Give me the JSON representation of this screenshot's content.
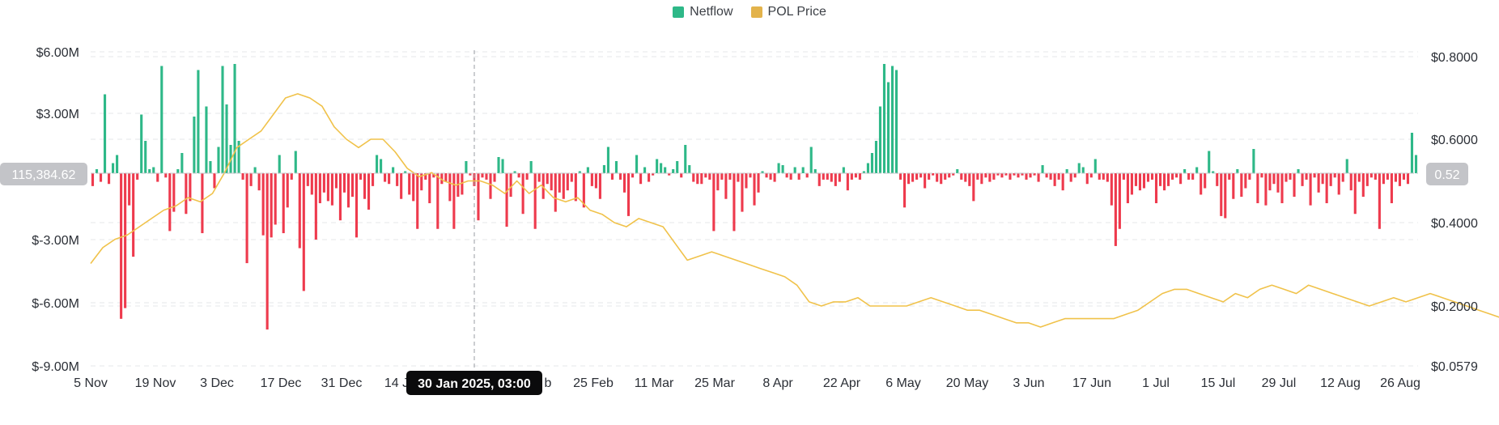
{
  "legend": [
    {
      "label": "Netflow",
      "color": "#2eb888"
    },
    {
      "label": "POL Price",
      "color": "#e3b34b"
    }
  ],
  "colors": {
    "positive": "#2eb888",
    "negative": "#ee3a4d",
    "price": "#f0c24a"
  },
  "chart_data": {
    "type": "bar+line",
    "x_tick_labels": [
      "5 Nov",
      "19 Nov",
      "3 Dec",
      "17 Dec",
      "31 Dec",
      "14 J",
      "30 Jan 2025, 03:00",
      "b",
      "25 Feb",
      "11 Mar",
      "25 Mar",
      "8 Apr",
      "22 Apr",
      "6 May",
      "20 May",
      "3 Jun",
      "17 Jun",
      "1 Jul",
      "15 Jul",
      "29 Jul",
      "12 Aug",
      "26 Aug"
    ],
    "y_left_ticks": [
      "$6.00M",
      "$3.00M",
      "$-3.00M",
      "$-6.00M",
      "$-9.00M"
    ],
    "y_left_tick_values": [
      6,
      3,
      -3,
      -6,
      -9
    ],
    "y_left_range": [
      -9,
      6
    ],
    "y_right_ticks": [
      "$0.8000",
      "$0.6000",
      "$0.4000",
      "$0.2000",
      "$0.0579"
    ],
    "y_right_tick_values": [
      0.8,
      0.6,
      0.4,
      0.2,
      0.0579
    ],
    "y_right_range": [
      0.0579,
      0.8
    ],
    "crosshair": {
      "date_label": "30 Jan 2025, 03:00",
      "left_value_label": "115,384.62",
      "left_value": 0.115,
      "right_value_label": "0.52",
      "right_value": 0.52
    },
    "series": [
      {
        "name": "Netflow",
        "axis": "left",
        "unit": "$M",
        "values": [
          -0.6,
          0.2,
          -0.4,
          3.9,
          -0.5,
          0.5,
          0.9,
          -6.8,
          -6.3,
          -1.5,
          -3.9,
          -0.3,
          2.9,
          1.6,
          0.2,
          0.3,
          -0.4,
          5.3,
          -0.2,
          -2.7,
          -1.8,
          0.2,
          1.0,
          -1.9,
          -1.3,
          2.8,
          5.1,
          -2.8,
          3.3,
          0.6,
          -0.7,
          1.3,
          5.3,
          3.4,
          1.4,
          5.4,
          1.6,
          -0.3,
          -4.2,
          -0.6,
          0.3,
          -0.8,
          -2.9,
          -7.3,
          -3.0,
          -2.4,
          0.9,
          -2.8,
          -1.6,
          -0.3,
          1.1,
          -3.5,
          -5.5,
          -0.6,
          -1.0,
          -3.1,
          -1.4,
          -0.9,
          -1.3,
          -1.5,
          -0.7,
          -2.2,
          -0.9,
          -1.6,
          -1.1,
          -3.0,
          -0.3,
          -1.2,
          -1.7,
          -0.6,
          0.9,
          0.7,
          -0.4,
          -0.5,
          0.3,
          -0.6,
          -1.2,
          0.1,
          -1.0,
          -1.3,
          -2.6,
          -0.8,
          -0.3,
          -1.4,
          -0.2,
          -2.6,
          -0.5,
          -0.4,
          -1.3,
          -2.6,
          -1.1,
          -1.0,
          0.6,
          -0.1,
          -0.6,
          -2.2,
          -0.2,
          -0.3,
          -1.2,
          -0.4,
          0.8,
          0.7,
          -2.5,
          -1.1,
          0.1,
          -0.2,
          -1.9,
          -0.3,
          0.6,
          -2.6,
          -0.4,
          -1.2,
          -0.5,
          -0.8,
          -1.8,
          -0.9,
          -1.2,
          -0.8,
          -0.4,
          -1.3,
          0.1,
          -1.6,
          0.3,
          -0.6,
          -0.7,
          -1.2,
          0.4,
          1.3,
          -0.3,
          0.6,
          -0.3,
          -0.9,
          -2.0,
          -0.2,
          0.9,
          -0.5,
          0.3,
          -0.4,
          -0.1,
          0.7,
          0.5,
          0.3,
          -0.1,
          0.2,
          0.6,
          -0.2,
          1.4,
          0.4,
          -0.4,
          -0.5,
          -0.5,
          -0.2,
          -0.3,
          -2.7,
          -0.8,
          -0.3,
          -1.2,
          -0.3,
          -2.7,
          -0.4,
          -1.8,
          -0.7,
          -0.2,
          -1.5,
          -0.9,
          0.1,
          -0.2,
          -0.3,
          -0.4,
          0.5,
          0.4,
          -0.2,
          -0.3,
          0.3,
          -0.3,
          0.3,
          -0.2,
          1.3,
          0.2,
          -0.6,
          -0.3,
          -0.3,
          -0.4,
          -0.6,
          -0.4,
          0.3,
          -0.8,
          -0.3,
          -0.2,
          -0.3,
          0.1,
          0.5,
          1.0,
          1.6,
          3.3,
          5.4,
          4.5,
          5.3,
          5.1,
          -0.3,
          -1.6,
          -0.5,
          -0.4,
          -0.3,
          -0.2,
          -0.7,
          -0.3,
          -0.1,
          -0.4,
          -0.5,
          -0.3,
          -0.2,
          -0.1,
          0.2,
          -0.3,
          -0.4,
          -0.6,
          -1.3,
          -0.3,
          -0.5,
          -0.2,
          -0.4,
          -0.3,
          -0.1,
          -0.2,
          -0.1,
          -0.3,
          -0.1,
          -0.2,
          -0.1,
          -0.3,
          -0.2,
          -0.1,
          -0.4,
          0.4,
          -0.2,
          -0.3,
          -0.6,
          -0.3,
          -0.8,
          0.2,
          -0.4,
          -0.2,
          0.5,
          0.3,
          -0.5,
          -0.2,
          0.7,
          -0.3,
          -0.3,
          -0.4,
          -1.5,
          -3.4,
          -2.6,
          -0.3,
          -1.4,
          -1.0,
          -0.6,
          -0.8,
          -0.7,
          -0.4,
          -0.3,
          -1.4,
          -0.6,
          -0.8,
          -0.6,
          -0.3,
          -0.2,
          -0.5,
          0.2,
          -0.3,
          -0.3,
          0.3,
          -1.0,
          -0.7,
          1.1,
          0.1,
          -0.6,
          -2.0,
          -2.1,
          -0.3,
          -1.2,
          0.2,
          -1.1,
          -0.7,
          -0.3,
          1.2,
          -1.4,
          -0.2,
          -1.5,
          -0.8,
          -0.5,
          -0.9,
          -1.4,
          -0.4,
          -0.3,
          -1.1,
          0.2,
          -0.6,
          -0.3,
          -1.5,
          -0.2,
          -0.9,
          -0.5,
          -1.4,
          -0.6,
          -0.2,
          -1.0,
          -0.4,
          0.7,
          -0.8,
          -1.9,
          -0.4,
          -1.1,
          -0.6,
          -0.2,
          -0.3,
          -2.6,
          -0.5,
          -0.3,
          -1.4,
          -0.4,
          -0.6,
          -0.3,
          -0.5,
          2.0,
          0.9
        ]
      },
      {
        "name": "POL Price",
        "axis": "right",
        "unit": "$",
        "points": [
          [
            0,
            0.302
          ],
          [
            3,
            0.34
          ],
          [
            6,
            0.36
          ],
          [
            9,
            0.37
          ],
          [
            12,
            0.39
          ],
          [
            15,
            0.41
          ],
          [
            18,
            0.43
          ],
          [
            21,
            0.44
          ],
          [
            24,
            0.46
          ],
          [
            27,
            0.45
          ],
          [
            30,
            0.47
          ],
          [
            33,
            0.52
          ],
          [
            36,
            0.58
          ],
          [
            39,
            0.6
          ],
          [
            42,
            0.62
          ],
          [
            45,
            0.66
          ],
          [
            48,
            0.7
          ],
          [
            51,
            0.71
          ],
          [
            54,
            0.7
          ],
          [
            57,
            0.68
          ],
          [
            60,
            0.63
          ],
          [
            63,
            0.6
          ],
          [
            66,
            0.58
          ],
          [
            69,
            0.6
          ],
          [
            72,
            0.6
          ],
          [
            75,
            0.57
          ],
          [
            78,
            0.53
          ],
          [
            81,
            0.51
          ],
          [
            84,
            0.52
          ],
          [
            87,
            0.5
          ],
          [
            90,
            0.49
          ],
          [
            93,
            0.5
          ],
          [
            96,
            0.5
          ],
          [
            99,
            0.49
          ],
          [
            102,
            0.47
          ],
          [
            105,
            0.5
          ],
          [
            108,
            0.47
          ],
          [
            111,
            0.49
          ],
          [
            114,
            0.46
          ],
          [
            117,
            0.45
          ],
          [
            120,
            0.46
          ],
          [
            123,
            0.43
          ],
          [
            126,
            0.42
          ],
          [
            129,
            0.4
          ],
          [
            132,
            0.39
          ],
          [
            135,
            0.41
          ],
          [
            138,
            0.4
          ],
          [
            141,
            0.39
          ],
          [
            144,
            0.35
          ],
          [
            147,
            0.31
          ],
          [
            150,
            0.32
          ],
          [
            153,
            0.33
          ],
          [
            156,
            0.32
          ],
          [
            159,
            0.31
          ],
          [
            162,
            0.3
          ],
          [
            165,
            0.29
          ],
          [
            168,
            0.28
          ],
          [
            171,
            0.27
          ],
          [
            174,
            0.25
          ],
          [
            177,
            0.21
          ],
          [
            180,
            0.2
          ],
          [
            183,
            0.21
          ],
          [
            186,
            0.21
          ],
          [
            189,
            0.22
          ],
          [
            192,
            0.2
          ],
          [
            195,
            0.2
          ],
          [
            198,
            0.2
          ],
          [
            201,
            0.2
          ],
          [
            204,
            0.21
          ],
          [
            207,
            0.22
          ],
          [
            210,
            0.21
          ],
          [
            213,
            0.2
          ],
          [
            216,
            0.19
          ],
          [
            219,
            0.19
          ],
          [
            222,
            0.18
          ],
          [
            225,
            0.17
          ],
          [
            228,
            0.16
          ],
          [
            231,
            0.16
          ],
          [
            234,
            0.15
          ],
          [
            237,
            0.16
          ],
          [
            240,
            0.17
          ],
          [
            243,
            0.17
          ],
          [
            246,
            0.17
          ],
          [
            249,
            0.17
          ],
          [
            252,
            0.17
          ],
          [
            255,
            0.18
          ],
          [
            258,
            0.19
          ],
          [
            261,
            0.21
          ],
          [
            264,
            0.23
          ],
          [
            267,
            0.24
          ],
          [
            270,
            0.24
          ],
          [
            273,
            0.23
          ],
          [
            276,
            0.22
          ],
          [
            279,
            0.21
          ],
          [
            282,
            0.23
          ],
          [
            285,
            0.22
          ],
          [
            288,
            0.24
          ],
          [
            291,
            0.25
          ],
          [
            294,
            0.24
          ],
          [
            297,
            0.23
          ],
          [
            300,
            0.25
          ],
          [
            303,
            0.24
          ],
          [
            306,
            0.23
          ],
          [
            309,
            0.22
          ],
          [
            312,
            0.21
          ],
          [
            315,
            0.2
          ],
          [
            318,
            0.21
          ],
          [
            321,
            0.22
          ],
          [
            324,
            0.21
          ],
          [
            327,
            0.22
          ],
          [
            330,
            0.23
          ],
          [
            333,
            0.22
          ],
          [
            336,
            0.21
          ],
          [
            339,
            0.2
          ],
          [
            342,
            0.19
          ],
          [
            345,
            0.18
          ],
          [
            348,
            0.17
          ],
          [
            351,
            0.16
          ],
          [
            354,
            0.16
          ],
          [
            357,
            0.17
          ],
          [
            360,
            0.17
          ],
          [
            363,
            0.18
          ],
          [
            366,
            0.18
          ],
          [
            369,
            0.19
          ],
          [
            372,
            0.18
          ],
          [
            375,
            0.18
          ],
          [
            378,
            0.18
          ],
          [
            381,
            0.19
          ],
          [
            384,
            0.2
          ],
          [
            387,
            0.22
          ],
          [
            390,
            0.23
          ],
          [
            393,
            0.23
          ],
          [
            396,
            0.24
          ],
          [
            399,
            0.24
          ],
          [
            402,
            0.25
          ],
          [
            405,
            0.24
          ],
          [
            408,
            0.23
          ],
          [
            411,
            0.22
          ],
          [
            414,
            0.22
          ],
          [
            417,
            0.21
          ],
          [
            420,
            0.2
          ],
          [
            423,
            0.2
          ],
          [
            426,
            0.21
          ],
          [
            429,
            0.22
          ],
          [
            432,
            0.23
          ],
          [
            435,
            0.24
          ],
          [
            438,
            0.25
          ],
          [
            441,
            0.25
          ],
          [
            444,
            0.24
          ],
          [
            447,
            0.25
          ],
          [
            450,
            0.24
          ],
          [
            453,
            0.25
          ],
          [
            456,
            0.25
          ],
          [
            459,
            0.24
          ],
          [
            462,
            0.24
          ],
          [
            465,
            0.25
          ],
          [
            468,
            0.26
          ]
        ]
      }
    ],
    "legend_position": "top-center",
    "grid": true
  }
}
